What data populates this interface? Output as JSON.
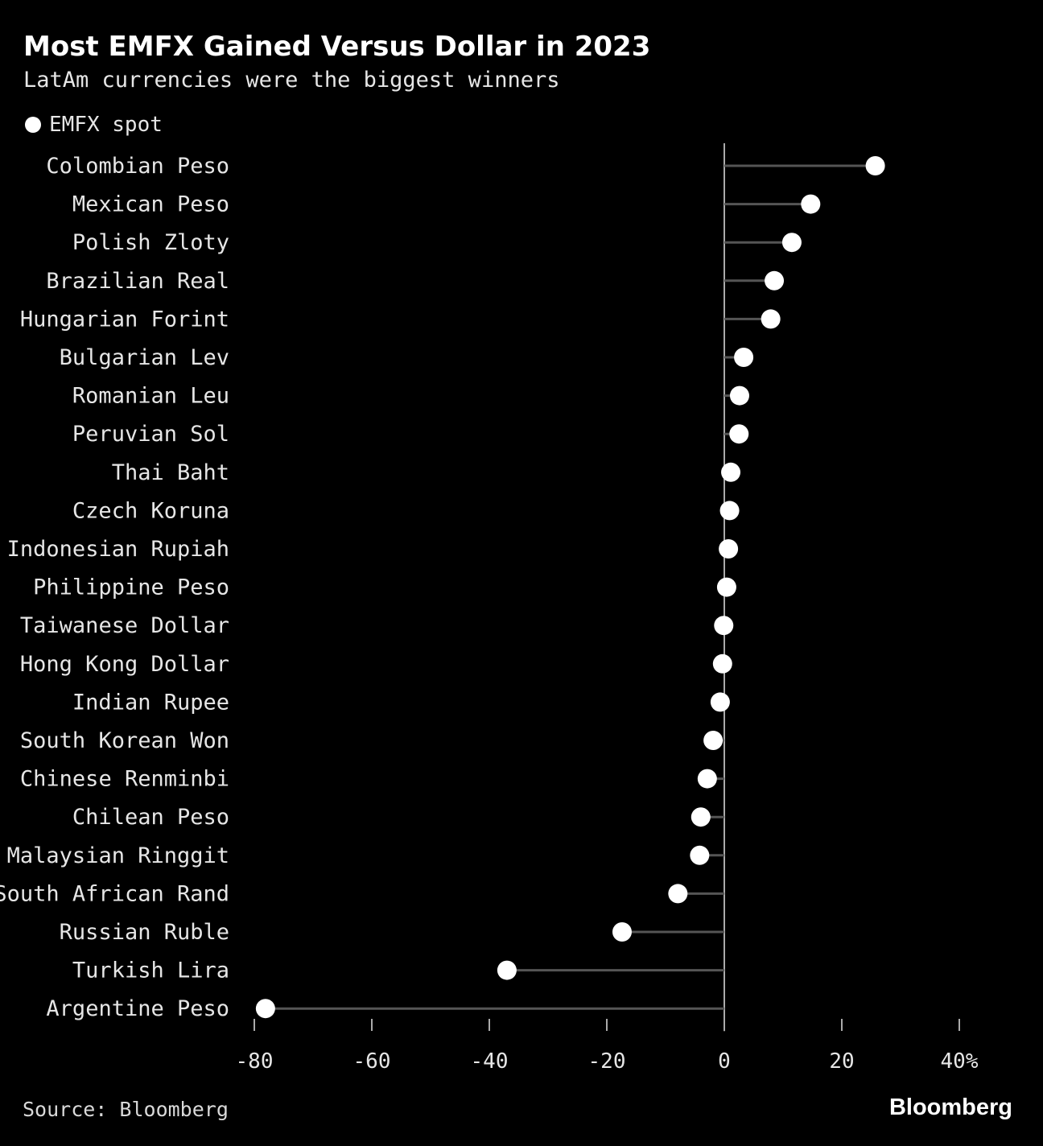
{
  "title": "Most EMFX Gained Versus Dollar in 2023",
  "subtitle": "LatAm currencies were the biggest winners",
  "legend": {
    "label": "EMFX spot"
  },
  "source": "Source: Bloomberg",
  "brand": "Bloomberg",
  "colors": {
    "background": "#000000",
    "dot": "#ffffff",
    "stem": "#555555",
    "axis": "#aaaaaa",
    "text": "#e6e6e6"
  },
  "chart_data": {
    "type": "lollipop",
    "title": "Most EMFX Gained Versus Dollar in 2023",
    "subtitle": "LatAm currencies were the biggest winners",
    "series_name": "EMFX spot",
    "xlabel": "",
    "ylabel": "",
    "xlim": [
      -80,
      40
    ],
    "x_ticks": [
      -80,
      -60,
      -40,
      -20,
      0,
      20,
      40
    ],
    "x_tick_labels": [
      "-80",
      "-60",
      "-40",
      "-20",
      "0",
      "20",
      "40%"
    ],
    "categories": [
      "Colombian Peso",
      "Mexican Peso",
      "Polish Zloty",
      "Brazilian Real",
      "Hungarian Forint",
      "Bulgarian Lev",
      "Romanian Leu",
      "Peruvian Sol",
      "Thai Baht",
      "Czech Koruna",
      "Indonesian Rupiah",
      "Philippine Peso",
      "Taiwanese Dollar",
      "Hong Kong Dollar",
      "Indian Rupee",
      "South Korean Won",
      "Chinese Renminbi",
      "Chilean Peso",
      "Malaysian Ringgit",
      "South African Rand",
      "Russian Ruble",
      "Turkish Lira",
      "Argentine Peso"
    ],
    "values": [
      25.7,
      14.7,
      11.5,
      8.5,
      7.9,
      3.3,
      2.6,
      2.5,
      1.1,
      0.9,
      0.7,
      0.4,
      -0.1,
      -0.3,
      -0.7,
      -1.9,
      -2.9,
      -4.0,
      -4.2,
      -7.9,
      -17.4,
      -37.0,
      -78.1
    ],
    "grid": false
  }
}
